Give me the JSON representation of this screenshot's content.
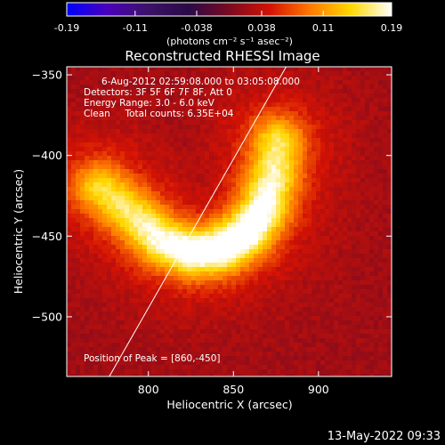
{
  "chart_data": {
    "type": "heatmap",
    "title": "Reconstructed RHESSI Image",
    "xlabel": "Heliocentric X (arcsec)",
    "ylabel": "Heliocentric Y (arcsec)",
    "xlim": [
      752,
      943
    ],
    "ylim": [
      -537,
      -345
    ],
    "x_ticks": [
      800,
      850,
      900
    ],
    "y_ticks": [
      -350,
      -400,
      -450,
      -500
    ],
    "colorbar": {
      "label": "(photons cm⁻² s⁻¹ asec⁻²)",
      "tick_values": [
        -0.19,
        -0.11,
        -0.038,
        0.038,
        0.11,
        0.19
      ],
      "tick_labels": [
        "-0.19",
        "-0.11",
        "-0.038",
        "0.038",
        "0.11",
        "0.19"
      ],
      "range": [
        -0.19,
        0.19
      ],
      "colors": [
        "#0000ff",
        "#4b00bb",
        "#3c1268",
        "#2a0a48",
        "#7a0a20",
        "#d31204",
        "#ff7a00",
        "#ffd800",
        "#ffffff"
      ]
    },
    "annotations": [
      "6-Aug-2012 02:59:08.000 to 03:05:08.000",
      "Detectors: 3F 5F 6F 7F 8F, Att 0",
      "Energy Range: 3.0 - 6.0 keV",
      "Clean     Total counts: 6.35E+04"
    ],
    "peak_label": "Position of Peak = [860,-450]",
    "peak": [
      860,
      -450
    ],
    "limb_line": [
      [
        777,
        -537
      ],
      [
        881,
        -345
      ]
    ],
    "source": {
      "arc_points": [
        [
          772,
          -420
        ],
        [
          790,
          -436
        ],
        [
          808,
          -453
        ],
        [
          826,
          -460
        ],
        [
          842,
          -458
        ],
        [
          858,
          -448
        ],
        [
          868,
          -432
        ],
        [
          874,
          -410
        ],
        [
          876,
          -392
        ]
      ],
      "peak_value": 0.19,
      "background_value": 0.02
    }
  },
  "footer": {
    "timestamp": "13-May-2022 09:33"
  }
}
